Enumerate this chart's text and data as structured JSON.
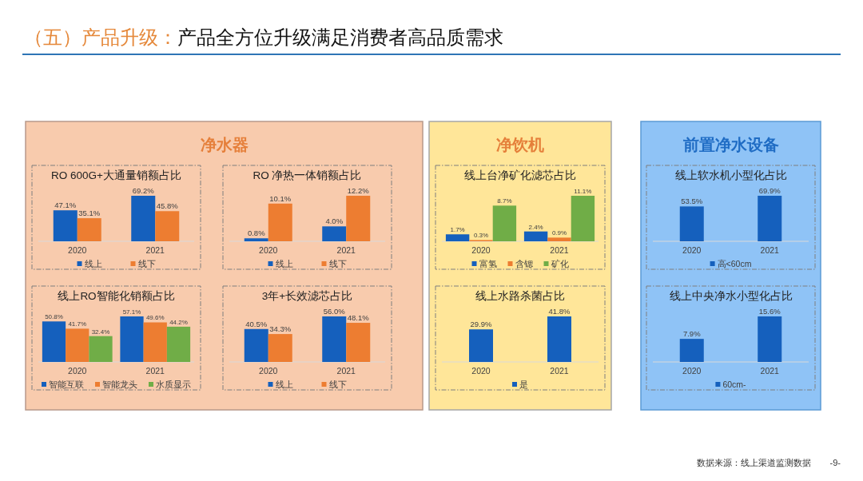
{
  "chart_data": [
    {
      "type": "other",
      "title": "（五）产品升级：",
      "subtitle": "产品全方位升级满足消费者高品质需求",
      "annotations": [
        "数据来源：线上渠道监测数据",
        "-9-"
      ]
    },
    {
      "type": "other",
      "title": "净水器"
    },
    {
      "type": "bar",
      "title": "RO 600G+大通量销额占比",
      "categories": [
        "2020",
        "2021"
      ],
      "series": [
        {
          "name": "线上",
          "color": "#1560bd",
          "values": [
            47.1,
            69.2
          ],
          "value_labels": [
            "47.1%",
            "69.2%"
          ]
        },
        {
          "name": "线下",
          "color": "#ed7d31",
          "values": [
            35.1,
            45.8
          ],
          "value_labels": [
            "35.1%",
            "45.8%"
          ]
        }
      ],
      "legend": "bottom"
    },
    {
      "type": "bar",
      "title": "RO 净热一体销额占比",
      "categories": [
        "2020",
        "2021"
      ],
      "series": [
        {
          "name": "线上",
          "color": "#1560bd",
          "values": [
            0.8,
            4.0
          ],
          "value_labels": [
            "0.8%",
            "4.0%"
          ]
        },
        {
          "name": "线下",
          "color": "#ed7d31",
          "values": [
            10.1,
            12.2
          ],
          "value_labels": [
            "10.1%",
            "12.2%"
          ]
        }
      ],
      "legend": "bottom"
    },
    {
      "type": "bar",
      "title": "线上RO智能化销额占比",
      "categories": [
        "2020",
        "2021"
      ],
      "series": [
        {
          "name": "智能互联",
          "color": "#1560bd",
          "values": [
            50.8,
            57.1
          ],
          "value_labels": [
            "50.8%",
            "57.1%"
          ]
        },
        {
          "name": "智能龙头",
          "color": "#ed7d31",
          "values": [
            41.7,
            49.6
          ],
          "value_labels": [
            "41.7%",
            "49.6%"
          ]
        },
        {
          "name": "水质显示",
          "color": "#70ad47",
          "values": [
            32.4,
            44.2
          ],
          "value_labels": [
            "32.4%",
            "44.2%"
          ]
        }
      ],
      "legend": "bottom"
    },
    {
      "type": "bar",
      "title": "3年+长效滤芯占比",
      "categories": [
        "2020",
        "2021"
      ],
      "series": [
        {
          "name": "线上",
          "color": "#1560bd",
          "values": [
            40.5,
            56.0
          ],
          "value_labels": [
            "40.5%",
            "56.0%"
          ]
        },
        {
          "name": "线下",
          "color": "#ed7d31",
          "values": [
            34.3,
            48.1
          ],
          "value_labels": [
            "34.3%",
            "48.1%"
          ]
        }
      ],
      "legend": "bottom"
    },
    {
      "type": "other",
      "title": "净饮机"
    },
    {
      "type": "bar",
      "title": "线上台净矿化滤芯占比",
      "categories": [
        "2020",
        "2021"
      ],
      "series": [
        {
          "name": "富氢",
          "color": "#1560bd",
          "values": [
            1.7,
            2.4
          ],
          "value_labels": [
            "1.7%",
            "2.4%"
          ]
        },
        {
          "name": "含锶",
          "color": "#ed7d31",
          "values": [
            0.3,
            0.9
          ],
          "value_labels": [
            "0.3%",
            "0.9%"
          ]
        },
        {
          "name": "矿化",
          "color": "#70ad47",
          "values": [
            8.7,
            11.1
          ],
          "value_labels": [
            "8.7%",
            "11.1%"
          ]
        }
      ],
      "legend": "bottom"
    },
    {
      "type": "bar",
      "title": "线上水路杀菌占比",
      "categories": [
        "2020",
        "2021"
      ],
      "series": [
        {
          "name": "是",
          "color": "#1560bd",
          "values": [
            29.9,
            41.8
          ],
          "value_labels": [
            "29.9%",
            "41.8%"
          ]
        }
      ],
      "legend": "bottom"
    },
    {
      "type": "other",
      "title": "前置净水设备"
    },
    {
      "type": "bar",
      "title": "线上软水机小型化占比",
      "categories": [
        "2020",
        "2021"
      ],
      "series": [
        {
          "name": "高<60cm",
          "color": "#1560bd",
          "values": [
            53.5,
            69.9
          ],
          "value_labels": [
            "53.5%",
            "69.9%"
          ]
        }
      ],
      "legend": "bottom"
    },
    {
      "type": "bar",
      "title": "线上中央净水小型化占比",
      "categories": [
        "2020",
        "2021"
      ],
      "series": [
        {
          "name": "60cm-",
          "color": "#1560bd",
          "values": [
            7.9,
            15.6
          ],
          "value_labels": [
            "7.9%",
            "15.6%"
          ]
        }
      ],
      "legend": "bottom"
    }
  ]
}
